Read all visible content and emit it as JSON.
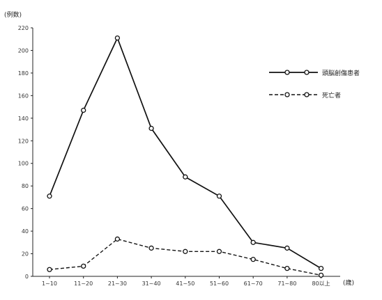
{
  "chart_data": {
    "type": "line",
    "ylabel": "(例数)",
    "xlabel": "(歳)",
    "categories": [
      "1~10",
      "11~20",
      "21~30",
      "31~40",
      "41~50",
      "51~60",
      "61~70",
      "71~80",
      "80以上"
    ],
    "yticks": [
      0,
      20,
      40,
      60,
      80,
      100,
      120,
      140,
      160,
      180,
      200,
      220
    ],
    "ylim": [
      0,
      220
    ],
    "grid": false,
    "legend_position": "right",
    "series": [
      {
        "name": "頭脳創傷患者",
        "style": "solid",
        "values": [
          71,
          147,
          211,
          131,
          88,
          71,
          30,
          25,
          7
        ]
      },
      {
        "name": "死亡者",
        "style": "dashed",
        "values": [
          6,
          9,
          33,
          25,
          22,
          22,
          15,
          7,
          1
        ]
      }
    ]
  }
}
